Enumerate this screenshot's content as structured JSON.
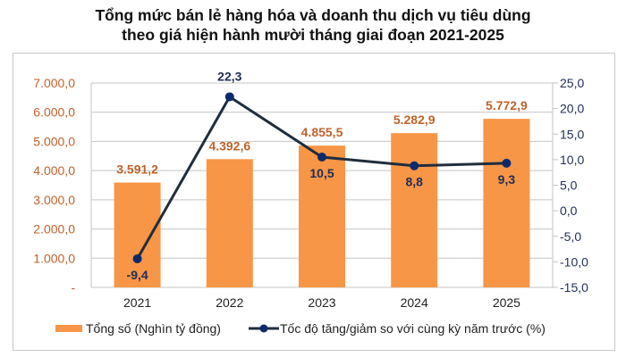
{
  "chart_data": {
    "type": "bar+line",
    "title_line1": "Tổng mức bán lẻ hàng hóa và doanh thu dịch vụ tiêu dùng",
    "title_line2": "theo giá hiện hành mười tháng giai đoạn 2021-2025",
    "categories": [
      "2021",
      "2022",
      "2023",
      "2024",
      "2025"
    ],
    "series": [
      {
        "name": "Tổng số (Nghìn tỷ đồng)",
        "type": "bar",
        "axis": "left",
        "color": "#F79646",
        "values": [
          3591.2,
          4392.6,
          4855.5,
          5282.9,
          5772.9
        ],
        "labels": [
          "3.591,2",
          "4.392,6",
          "4.855,5",
          "5.282,9",
          "5.772,9"
        ]
      },
      {
        "name": "Tốc độ tăng/giảm so với cùng kỳ năm trước (%)",
        "type": "line",
        "axis": "right",
        "color": "#1F2D3D",
        "marker_color": "#0D2A6B",
        "values": [
          -9.4,
          22.3,
          10.5,
          8.8,
          9.3
        ],
        "labels": [
          "-9,4",
          "22,3",
          "10,5",
          "8,8",
          "9,3"
        ]
      }
    ],
    "left_axis": {
      "range": [
        0,
        7000
      ],
      "ticks": [
        "-",
        "1.000,0",
        "2.000,0",
        "3.000,0",
        "4.000,0",
        "5.000,0",
        "6.000,0",
        "7.000,0"
      ],
      "color": "#C0622A"
    },
    "right_axis": {
      "range": [
        -15,
        25
      ],
      "ticks": [
        "-15,0",
        "-10,0",
        "-5,0",
        "0,0",
        "5,0",
        "10,0",
        "15,0",
        "20,0",
        "25,0"
      ],
      "color": "#1F2D5A"
    },
    "grid": true,
    "legend": "bottom"
  }
}
